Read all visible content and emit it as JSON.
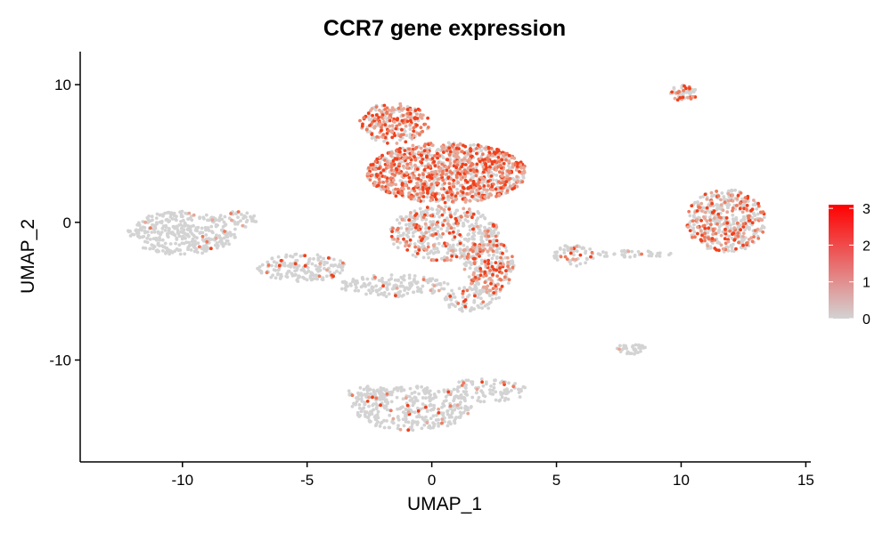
{
  "chart_data": {
    "type": "scatter",
    "title": "CCR7 gene expression",
    "xlabel": "UMAP_1",
    "ylabel": "UMAP_2",
    "xlim": [
      -14.1,
      15.2
    ],
    "ylim": [
      -17.4,
      12.4
    ],
    "x_ticks": [
      -10,
      -5,
      0,
      5,
      10,
      15
    ],
    "y_ticks": [
      -10,
      0,
      10
    ],
    "x_tick_labels": [
      "-10",
      "-5",
      "0",
      "5",
      "10",
      "15"
    ],
    "y_tick_labels": [
      "-10",
      "0",
      "10"
    ],
    "grid": false,
    "legend": {
      "placement": "right",
      "title": "",
      "min": 0,
      "max": 3.1,
      "ticks": [
        0,
        1,
        2,
        3
      ],
      "tick_labels": [
        "0",
        "1",
        "2",
        "3"
      ],
      "low_color": "#d3d3d3",
      "high_color": "#ff0000"
    },
    "colors": {
      "low": "#d3d3d3",
      "high": "#f0401c"
    },
    "clusters": [
      {
        "name": "left",
        "cx": -10.0,
        "cy": -0.8,
        "rx": 2.2,
        "ry": 1.6,
        "n": 360,
        "expr_frac": 0.04
      },
      {
        "name": "left-upper-arm",
        "cx": -7.8,
        "cy": 0.2,
        "rx": 0.8,
        "ry": 0.6,
        "n": 40,
        "expr_frac": 0.1
      },
      {
        "name": "bridge",
        "cx": -5.2,
        "cy": -3.3,
        "rx": 1.8,
        "ry": 1.0,
        "n": 180,
        "expr_frac": 0.08
      },
      {
        "name": "bridge-lower",
        "cx": -1.5,
        "cy": -4.6,
        "rx": 2.2,
        "ry": 0.8,
        "n": 160,
        "expr_frac": 0.06
      },
      {
        "name": "main-top",
        "cx": 0.6,
        "cy": 3.6,
        "rx": 3.2,
        "ry": 2.2,
        "n": 1150,
        "expr_frac": 0.6
      },
      {
        "name": "main-horn",
        "cx": -1.5,
        "cy": 7.2,
        "rx": 1.4,
        "ry": 1.5,
        "n": 230,
        "expr_frac": 0.62
      },
      {
        "name": "main-mid",
        "cx": 0.5,
        "cy": -0.8,
        "rx": 2.2,
        "ry": 2.0,
        "n": 450,
        "expr_frac": 0.3
      },
      {
        "name": "main-lower-right",
        "cx": 2.3,
        "cy": -3.2,
        "rx": 1.0,
        "ry": 2.0,
        "n": 240,
        "expr_frac": 0.42
      },
      {
        "name": "main-bottom",
        "cx": 1.6,
        "cy": -5.6,
        "rx": 1.2,
        "ry": 0.9,
        "n": 90,
        "expr_frac": 0.1
      },
      {
        "name": "right-large",
        "cx": 11.8,
        "cy": 0.1,
        "rx": 1.6,
        "ry": 2.3,
        "n": 460,
        "expr_frac": 0.35
      },
      {
        "name": "top-right-small",
        "cx": 10.1,
        "cy": 9.4,
        "rx": 0.55,
        "ry": 0.6,
        "n": 60,
        "expr_frac": 0.5
      },
      {
        "name": "small-mid",
        "cx": 8.0,
        "cy": -9.2,
        "rx": 0.6,
        "ry": 0.4,
        "n": 40,
        "expr_frac": 0.02
      },
      {
        "name": "small-left-right",
        "cx": 5.7,
        "cy": -2.4,
        "rx": 0.8,
        "ry": 0.8,
        "n": 60,
        "expr_frac": 0.3
      },
      {
        "name": "stream",
        "cx": 8.0,
        "cy": -2.3,
        "rx": 1.6,
        "ry": 0.25,
        "n": 40,
        "expr_frac": 0.1
      },
      {
        "name": "bottom",
        "cx": -0.8,
        "cy": -13.5,
        "rx": 2.4,
        "ry": 1.6,
        "n": 340,
        "expr_frac": 0.05
      },
      {
        "name": "bottom-arm",
        "cx": 2.2,
        "cy": -12.2,
        "rx": 1.6,
        "ry": 0.9,
        "n": 100,
        "expr_frac": 0.08
      },
      {
        "name": "bottom-left",
        "cx": -2.5,
        "cy": -12.4,
        "rx": 0.9,
        "ry": 0.5,
        "n": 60,
        "expr_frac": 0.04
      }
    ]
  }
}
